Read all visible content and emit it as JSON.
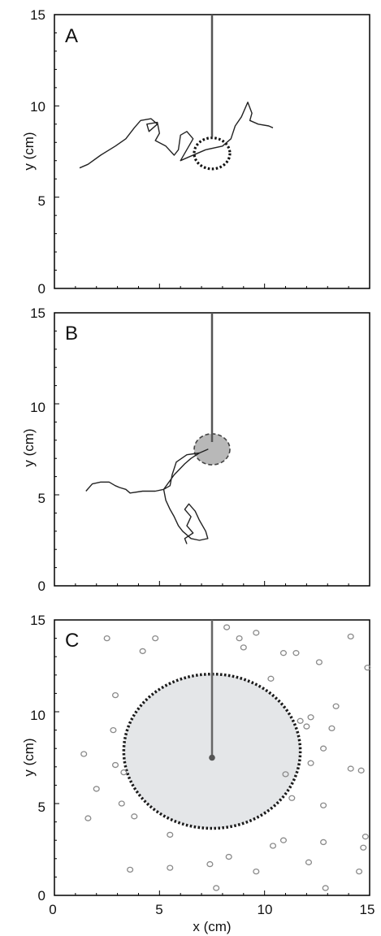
{
  "figure": {
    "xlabel": "x (cm)",
    "ylabel": "y (cm)",
    "x_ticks": [
      "0",
      "5",
      "10",
      "15"
    ],
    "y_ticks": [
      "0",
      "5",
      "10",
      "15"
    ]
  },
  "chart_data": [
    {
      "panel": "A",
      "type": "line",
      "xlim": [
        0,
        15
      ],
      "ylim": [
        0,
        15
      ],
      "tether": {
        "x": 7.5,
        "y_top": 15,
        "y_bottom": 8.3
      },
      "target_circle": {
        "cx": 7.5,
        "cy": 7.4,
        "r": 0.85,
        "style": "dotted",
        "filled": false
      },
      "trajectory": [
        [
          1.2,
          6.6
        ],
        [
          1.6,
          6.8
        ],
        [
          2.2,
          7.3
        ],
        [
          2.9,
          7.8
        ],
        [
          3.4,
          8.2
        ],
        [
          3.8,
          8.8
        ],
        [
          4.1,
          9.2
        ],
        [
          4.6,
          9.3
        ],
        [
          4.9,
          9.0
        ],
        [
          4.5,
          8.6
        ],
        [
          4.4,
          9.0
        ],
        [
          4.9,
          9.1
        ],
        [
          5.0,
          8.5
        ],
        [
          4.8,
          8.1
        ],
        [
          5.3,
          7.8
        ],
        [
          5.7,
          7.3
        ],
        [
          5.9,
          7.6
        ],
        [
          6.0,
          8.4
        ],
        [
          6.3,
          8.6
        ],
        [
          6.6,
          8.2
        ],
        [
          6.2,
          7.4
        ],
        [
          6.0,
          7.0
        ],
        [
          6.4,
          7.2
        ],
        [
          7.2,
          7.6
        ],
        [
          8.0,
          7.8
        ],
        [
          8.4,
          8.2
        ],
        [
          8.6,
          8.9
        ],
        [
          8.9,
          9.4
        ],
        [
          9.2,
          10.2
        ],
        [
          9.4,
          9.6
        ],
        [
          9.3,
          9.2
        ],
        [
          9.7,
          9.0
        ],
        [
          10.2,
          8.9
        ],
        [
          10.4,
          8.8
        ]
      ],
      "grid": false
    },
    {
      "panel": "B",
      "type": "line",
      "xlim": [
        0,
        15
      ],
      "ylim": [
        0,
        15
      ],
      "tether": {
        "x": 7.5,
        "y_top": 15,
        "y_bottom": 7.9
      },
      "target_circle": {
        "cx": 7.5,
        "cy": 7.5,
        "r": 0.85,
        "style": "dashed",
        "filled": true
      },
      "trajectory": [
        [
          1.5,
          5.2
        ],
        [
          1.8,
          5.6
        ],
        [
          2.2,
          5.7
        ],
        [
          2.6,
          5.7
        ],
        [
          2.9,
          5.5
        ],
        [
          3.1,
          5.4
        ],
        [
          3.4,
          5.3
        ],
        [
          3.6,
          5.1
        ],
        [
          4.2,
          5.2
        ],
        [
          4.8,
          5.2
        ],
        [
          5.2,
          5.3
        ],
        [
          5.5,
          5.5
        ],
        [
          5.6,
          6.1
        ],
        [
          5.8,
          6.8
        ],
        [
          6.3,
          7.2
        ],
        [
          6.9,
          7.3
        ],
        [
          7.3,
          7.5
        ],
        [
          6.9,
          7.3
        ],
        [
          6.5,
          7.0
        ],
        [
          6.2,
          6.7
        ],
        [
          5.7,
          6.1
        ],
        [
          5.2,
          5.3
        ],
        [
          5.3,
          4.7
        ],
        [
          5.5,
          4.2
        ],
        [
          5.7,
          3.8
        ],
        [
          5.9,
          3.3
        ],
        [
          6.1,
          3.0
        ],
        [
          6.3,
          2.8
        ],
        [
          6.5,
          2.6
        ],
        [
          6.9,
          2.5
        ],
        [
          7.3,
          2.6
        ],
        [
          7.2,
          3.0
        ],
        [
          6.9,
          3.6
        ],
        [
          6.7,
          4.1
        ],
        [
          6.4,
          4.5
        ],
        [
          6.2,
          4.2
        ],
        [
          6.5,
          3.8
        ],
        [
          6.3,
          3.3
        ],
        [
          6.6,
          2.9
        ],
        [
          6.2,
          2.6
        ],
        [
          6.3,
          2.3
        ]
      ],
      "grid": false
    },
    {
      "panel": "C",
      "type": "scatter",
      "xlim": [
        0,
        15
      ],
      "ylim": [
        0,
        15
      ],
      "tether": {
        "x": 7.5,
        "y_top": 15,
        "y_bottom": 7.5
      },
      "center_point": {
        "x": 7.5,
        "y": 7.5
      },
      "target_circle": {
        "cx": 7.5,
        "cy": 7.85,
        "r": 4.2,
        "style": "dotted",
        "filled": true
      },
      "points": [
        [
          2.5,
          14.0
        ],
        [
          4.2,
          13.3
        ],
        [
          4.8,
          14.0
        ],
        [
          8.2,
          14.6
        ],
        [
          9.0,
          13.5
        ],
        [
          8.8,
          14.0
        ],
        [
          9.6,
          14.3
        ],
        [
          10.9,
          13.2
        ],
        [
          11.5,
          13.2
        ],
        [
          12.6,
          12.7
        ],
        [
          14.1,
          14.1
        ],
        [
          14.9,
          12.4
        ],
        [
          2.9,
          10.9
        ],
        [
          10.3,
          11.8
        ],
        [
          13.4,
          10.3
        ],
        [
          11.7,
          9.5
        ],
        [
          12.0,
          9.2
        ],
        [
          12.2,
          9.7
        ],
        [
          13.2,
          9.1
        ],
        [
          12.8,
          8.0
        ],
        [
          2.8,
          9.0
        ],
        [
          1.4,
          7.7
        ],
        [
          2.9,
          7.1
        ],
        [
          3.3,
          6.7
        ],
        [
          12.2,
          7.2
        ],
        [
          14.1,
          6.9
        ],
        [
          14.6,
          6.8
        ],
        [
          11.0,
          6.6
        ],
        [
          2.0,
          5.8
        ],
        [
          3.2,
          5.0
        ],
        [
          1.6,
          4.2
        ],
        [
          3.8,
          4.3
        ],
        [
          11.3,
          5.3
        ],
        [
          12.8,
          4.9
        ],
        [
          5.5,
          3.3
        ],
        [
          14.8,
          3.2
        ],
        [
          10.9,
          3.0
        ],
        [
          12.8,
          2.9
        ],
        [
          10.4,
          2.7
        ],
        [
          14.7,
          2.6
        ],
        [
          5.5,
          1.5
        ],
        [
          7.4,
          1.7
        ],
        [
          8.3,
          2.1
        ],
        [
          9.6,
          1.3
        ],
        [
          12.1,
          1.8
        ],
        [
          3.6,
          1.4
        ],
        [
          14.5,
          1.3
        ],
        [
          7.7,
          0.4
        ],
        [
          12.9,
          0.4
        ]
      ],
      "grid": false
    }
  ]
}
